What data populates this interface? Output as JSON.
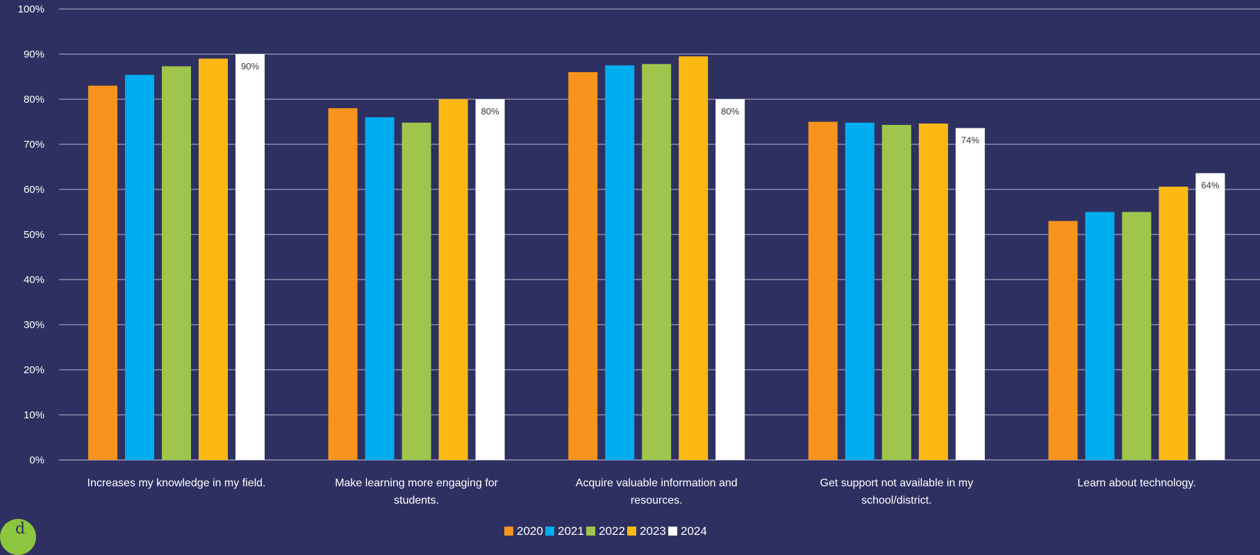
{
  "chart_data": {
    "type": "bar",
    "categories": [
      "Increases my knowledge in my field.",
      "Make learning more engaging for students.",
      "Acquire valuable information and resources.",
      "Get support not available in my school/district.",
      "Learn about technology."
    ],
    "category_lines": [
      [
        "Increases my knowledge in my field."
      ],
      [
        "Make learning more engaging for",
        "students."
      ],
      [
        "Acquire valuable information and",
        "resources."
      ],
      [
        "Get support not available in my",
        "school/district."
      ],
      [
        "Learn about technology."
      ]
    ],
    "series": [
      {
        "name": "2020",
        "color": "#f7941d",
        "values": [
          83,
          78,
          86,
          75,
          53
        ]
      },
      {
        "name": "2021",
        "color": "#00adef",
        "values": [
          85.4,
          76,
          87.5,
          74.8,
          55
        ]
      },
      {
        "name": "2022",
        "color": "#9fc54d",
        "values": [
          87.3,
          74.8,
          87.8,
          74.3,
          55
        ]
      },
      {
        "name": "2023",
        "color": "#fdb913",
        "values": [
          89,
          80,
          89.5,
          74.6,
          60.6
        ]
      },
      {
        "name": "2024",
        "color": "#ffffff",
        "values": [
          90,
          80,
          80,
          73.6,
          63.6
        ],
        "data_labels": [
          "90%",
          "80%",
          "80%",
          "74%",
          "64%"
        ]
      }
    ],
    "ylim": [
      0,
      100
    ],
    "yticks": [
      "0%",
      "10%",
      "20%",
      "30%",
      "40%",
      "50%",
      "60%",
      "70%",
      "80%",
      "90%",
      "100%"
    ],
    "grid": true,
    "legend_position": "bottom-center",
    "title": "",
    "xlabel": "",
    "ylabel": ""
  },
  "logo": {
    "glyph": "d"
  }
}
